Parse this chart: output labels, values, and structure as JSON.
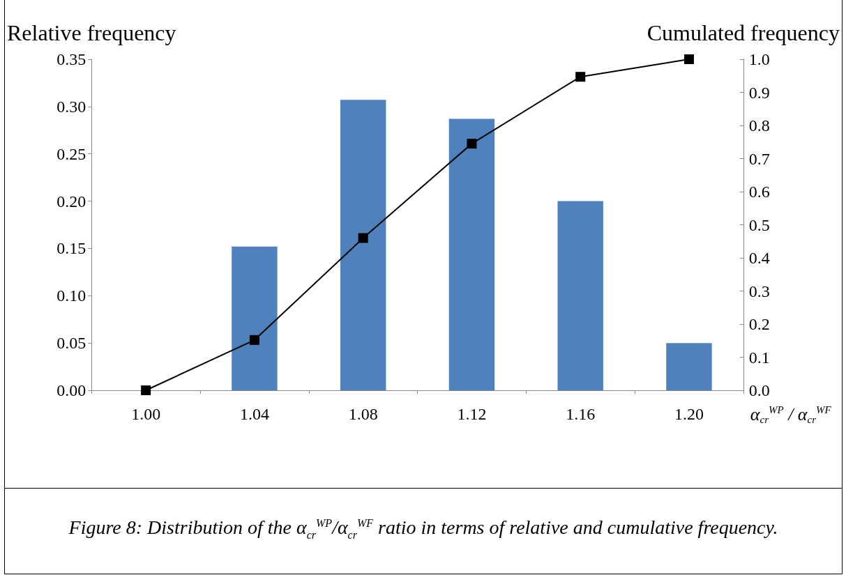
{
  "chart_data": {
    "type": "bar",
    "ylabel": "Relative frequency",
    "y2label": "Cumulated frequency",
    "xlabel": "α$_{cr}$$^{WP}$ / α$_{cr}$$^{WF}$",
    "categories": [
      "1.00",
      "1.04",
      "1.08",
      "1.12",
      "1.16",
      "1.20"
    ],
    "series": [
      {
        "color": "#4f81bd",
        "values": [
          0,
          0.152,
          0.307,
          0.287,
          0.2,
          0.05
        ]
      },
      {
        "type": "line",
        "axis": "y2",
        "color": "#000000",
        "marker": "square",
        "values": [
          0,
          0.152,
          0.46,
          0.745,
          0.947,
          1.0
        ]
      }
    ],
    "ylim": [
      0,
      0.35
    ],
    "yticks": [
      {
        "value": 0,
        "label": "0.00"
      },
      0.05,
      {
        "value": 0.1,
        "label": "0.10"
      },
      0.15,
      {
        "value": 0.2,
        "label": "0.20"
      },
      0.25,
      {
        "value": 0.3,
        "label": "0.30"
      },
      0.35
    ],
    "y2lim": [
      0,
      1
    ],
    "y2ticks": [
      {
        "value": 0,
        "label": "0.0"
      },
      0.1,
      0.2,
      0.3,
      0.4,
      0.5,
      0.6,
      0.7,
      0.8,
      0.9,
      {
        "value": 1,
        "label": "1.0"
      }
    ],
    "grid": false,
    "annotations": [
      "Figure 8: Distribution of the α$_{cr}$$^{WP}$/α$_{cr}$$^{WF}$ ratio in terms of relative and cumulative frequency."
    ]
  }
}
